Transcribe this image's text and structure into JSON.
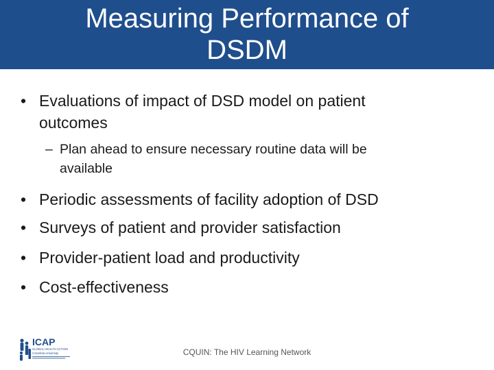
{
  "slide": {
    "title_line1": "Measuring Performance of",
    "title_line2": "DSDM",
    "bullets": [
      {
        "marker": "•",
        "lines": [
          "Evaluations of impact of DSD model on patient",
          "outcomes"
        ]
      },
      {
        "marker": "–",
        "lines": [
          "Plan ahead to ensure necessary routine data will be",
          "available"
        ]
      },
      {
        "marker": "•",
        "lines": [
          "Periodic assessments of facility adoption of DSD"
        ]
      },
      {
        "marker": "•",
        "lines": [
          "Surveys of patient and provider satisfaction"
        ]
      },
      {
        "marker": "•",
        "lines": [
          "Provider-patient load and productivity"
        ]
      },
      {
        "marker": "•",
        "lines": [
          "Cost-effectiveness"
        ]
      }
    ],
    "footer": "CQUIN: The HIV Learning Network"
  },
  "logo": {
    "name": "ICAP",
    "tagline": "GLOBAL HEALTH ACTION",
    "affiliation": "Columbia University",
    "icon": "people-figures-icon"
  },
  "colors": {
    "title_bar": "#1f4e8c",
    "title_text": "#ffffff",
    "body_text": "#1a1a1a",
    "logo_blue": "#1f4e8c"
  }
}
